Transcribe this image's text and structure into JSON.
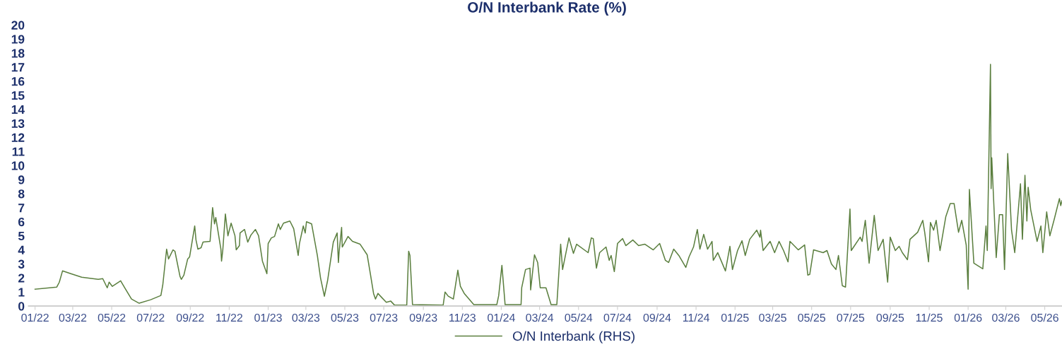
{
  "chart_data": {
    "type": "line",
    "title": "O/N Interbank Rate (%)",
    "xlim": [
      "2021-12-22",
      "2026-05-28"
    ],
    "xticks": [
      {
        "value": "2022-01-01",
        "label": "01/22"
      },
      {
        "value": "2022-03-01",
        "label": "03/22"
      },
      {
        "value": "2022-05-01",
        "label": "05/22"
      },
      {
        "value": "2022-07-01",
        "label": "07/22"
      },
      {
        "value": "2022-09-01",
        "label": "09/22"
      },
      {
        "value": "2022-11-01",
        "label": "11/22"
      },
      {
        "value": "2023-01-01",
        "label": "01/23"
      },
      {
        "value": "2023-03-01",
        "label": "03/23"
      },
      {
        "value": "2023-05-01",
        "label": "05/23"
      },
      {
        "value": "2023-07-01",
        "label": "07/23"
      },
      {
        "value": "2023-09-01",
        "label": "09/23"
      },
      {
        "value": "2023-11-01",
        "label": "11/23"
      },
      {
        "value": "2024-01-01",
        "label": "01/24"
      },
      {
        "value": "2024-03-01",
        "label": "03/24"
      },
      {
        "value": "2024-05-01",
        "label": "05/24"
      },
      {
        "value": "2024-07-01",
        "label": "07/24"
      },
      {
        "value": "2024-09-01",
        "label": "09/24"
      },
      {
        "value": "2024-11-01",
        "label": "11/24"
      },
      {
        "value": "2025-01-01",
        "label": "01/25"
      },
      {
        "value": "2025-03-01",
        "label": "03/25"
      },
      {
        "value": "2025-05-01",
        "label": "05/25"
      },
      {
        "value": "2025-07-01",
        "label": "07/25"
      },
      {
        "value": "2025-09-01",
        "label": "09/25"
      },
      {
        "value": "2025-11-01",
        "label": "11/25"
      },
      {
        "value": "2026-01-01",
        "label": "01/26"
      },
      {
        "value": "2026-03-01",
        "label": "03/26"
      },
      {
        "value": "2026-05-01",
        "label": "05/26"
      }
    ],
    "ylim": [
      0,
      20
    ],
    "yticks": [
      0,
      1,
      2,
      3,
      4,
      5,
      6,
      7,
      8,
      9,
      10,
      11,
      12,
      13,
      14,
      15,
      16,
      17,
      18,
      19,
      20
    ],
    "grid": false,
    "legend": "bottom",
    "marker": "none",
    "line_style": "solid",
    "series": [
      {
        "name": "O/N Interbank (RHS)",
        "color": "#5b7f3f",
        "x": [
          "2022-01-01",
          "2022-02-04",
          "2022-02-08",
          "2022-02-13",
          "2022-02-26",
          "2022-03-15",
          "2022-04-10",
          "2022-04-17",
          "2022-04-24",
          "2022-04-27",
          "2022-05-02",
          "2022-05-15",
          "2022-05-22",
          "2022-06-01",
          "2022-06-13",
          "2022-07-01",
          "2022-07-17",
          "2022-07-20",
          "2022-07-26",
          "2022-07-29",
          "2022-08-05",
          "2022-08-08",
          "2022-08-16",
          "2022-08-18",
          "2022-08-22",
          "2022-08-28",
          "2022-08-31",
          "2022-09-08",
          "2022-09-10",
          "2022-09-13",
          "2022-09-18",
          "2022-09-21",
          "2022-10-02",
          "2022-10-06",
          "2022-10-09",
          "2022-10-11",
          "2022-10-19",
          "2022-10-20",
          "2022-10-22",
          "2022-10-26",
          "2022-10-30",
          "2022-11-04",
          "2022-11-10",
          "2022-11-12",
          "2022-11-17",
          "2022-11-18",
          "2022-11-25",
          "2022-11-30",
          "2022-12-05",
          "2022-12-12",
          "2022-12-17",
          "2022-12-23",
          "2022-12-30",
          "2023-01-01",
          "2023-01-06",
          "2023-01-11",
          "2023-01-17",
          "2023-01-20",
          "2023-01-25",
          "2023-02-04",
          "2023-02-10",
          "2023-02-17",
          "2023-02-19",
          "2023-02-25",
          "2023-02-28",
          "2023-03-02",
          "2023-03-10",
          "2023-03-19",
          "2023-03-24",
          "2023-03-30",
          "2023-04-04",
          "2023-04-13",
          "2023-04-19",
          "2023-04-21",
          "2023-04-22",
          "2023-04-26",
          "2023-04-27",
          "2023-05-06",
          "2023-05-13",
          "2023-05-25",
          "2023-06-05",
          "2023-06-10",
          "2023-06-15",
          "2023-06-18",
          "2023-06-22",
          "2023-06-28",
          "2023-07-05",
          "2023-07-12",
          "2023-07-18",
          "2023-08-06",
          "2023-08-09",
          "2023-08-11",
          "2023-08-15",
          "2023-10-02",
          "2023-10-05",
          "2023-10-10",
          "2023-10-18",
          "2023-10-25",
          "2023-10-29",
          "2023-11-04",
          "2023-11-19",
          "2023-12-25",
          "2023-12-28",
          "2024-01-02",
          "2024-01-07",
          "2024-02-01",
          "2024-02-02",
          "2024-02-08",
          "2024-02-15",
          "2024-02-16",
          "2024-02-22",
          "2024-02-27",
          "2024-03-02",
          "2024-03-11",
          "2024-03-19",
          "2024-03-28",
          "2024-04-03",
          "2024-04-06",
          "2024-04-16",
          "2024-04-23",
          "2024-04-28",
          "2024-05-16",
          "2024-05-21",
          "2024-05-24",
          "2024-05-29",
          "2024-06-03",
          "2024-06-13",
          "2024-06-18",
          "2024-06-21",
          "2024-06-26",
          "2024-07-01",
          "2024-07-09",
          "2024-07-14",
          "2024-07-25",
          "2024-08-03",
          "2024-08-13",
          "2024-08-26",
          "2024-09-05",
          "2024-09-14",
          "2024-09-19",
          "2024-09-27",
          "2024-10-05",
          "2024-10-16",
          "2024-10-21",
          "2024-10-28",
          "2024-11-03",
          "2024-11-07",
          "2024-11-13",
          "2024-11-19",
          "2024-11-26",
          "2024-11-28",
          "2024-12-05",
          "2024-12-17",
          "2024-12-24",
          "2024-12-28",
          "2025-01-05",
          "2025-01-12",
          "2025-01-17",
          "2025-01-24",
          "2025-02-04",
          "2025-02-09",
          "2025-02-10",
          "2025-02-14",
          "2025-02-25",
          "2025-03-04",
          "2025-03-11",
          "2025-03-18",
          "2025-03-25",
          "2025-03-28",
          "2025-04-10",
          "2025-04-20",
          "2025-04-25",
          "2025-04-28",
          "2025-05-04",
          "2025-05-19",
          "2025-05-25",
          "2025-06-01",
          "2025-06-08",
          "2025-06-12",
          "2025-06-18",
          "2025-06-23",
          "2025-06-30",
          "2025-07-02",
          "2025-07-16",
          "2025-07-19",
          "2025-07-24",
          "2025-07-30",
          "2025-08-07",
          "2025-08-13",
          "2025-08-21",
          "2025-08-28",
          "2025-09-01",
          "2025-09-09",
          "2025-09-15",
          "2025-09-20",
          "2025-09-28",
          "2025-10-02",
          "2025-10-14",
          "2025-10-22",
          "2025-10-25",
          "2025-10-31",
          "2025-11-03",
          "2025-11-08",
          "2025-11-12",
          "2025-11-18",
          "2025-11-27",
          "2025-12-04",
          "2025-12-10",
          "2025-12-17",
          "2025-12-22",
          "2025-12-29",
          "2026-01-01",
          "2026-01-03",
          "2026-01-10",
          "2026-01-24",
          "2026-01-29",
          "2026-01-31",
          "2026-02-05",
          "2026-02-06",
          "2026-02-07",
          "2026-02-14",
          "2026-02-19",
          "2026-02-24",
          "2026-02-27",
          "2026-03-04",
          "2026-03-10",
          "2026-03-15",
          "2026-03-24",
          "2026-03-27",
          "2026-03-31",
          "2026-04-03",
          "2026-04-05",
          "2026-04-09",
          "2026-04-19",
          "2026-04-25",
          "2026-04-28",
          "2026-05-04",
          "2026-05-09",
          "2026-05-16",
          "2026-05-24",
          "2026-05-26",
          "2026-05-28"
        ],
        "values": [
          1.2,
          1.35,
          1.7,
          2.5,
          2.3,
          2.05,
          1.9,
          1.95,
          1.3,
          1.7,
          1.4,
          1.8,
          1.25,
          0.5,
          0.2,
          0.45,
          0.75,
          1.5,
          4.05,
          3.35,
          4.0,
          3.9,
          2.1,
          1.9,
          2.2,
          3.35,
          3.5,
          5.7,
          4.7,
          4.05,
          4.15,
          4.55,
          4.6,
          7.0,
          5.85,
          6.3,
          4.05,
          3.2,
          4.0,
          6.55,
          5.0,
          5.9,
          5.0,
          4.0,
          4.3,
          5.2,
          5.45,
          4.55,
          5.05,
          5.45,
          5.0,
          3.2,
          2.3,
          4.45,
          4.85,
          4.95,
          5.85,
          5.45,
          5.9,
          6.05,
          5.5,
          3.6,
          4.45,
          5.7,
          5.2,
          6.0,
          5.85,
          3.6,
          2.0,
          0.7,
          1.8,
          4.55,
          5.2,
          3.1,
          3.8,
          5.6,
          4.2,
          4.95,
          4.6,
          4.4,
          3.65,
          2.3,
          0.9,
          0.5,
          0.9,
          0.6,
          0.27,
          0.35,
          0.06,
          0.06,
          3.9,
          3.6,
          0.1,
          0.06,
          1.0,
          0.7,
          0.5,
          2.55,
          1.4,
          0.9,
          0.1,
          0.1,
          0.75,
          2.9,
          0.1,
          0.1,
          1.3,
          2.6,
          2.7,
          1.15,
          3.65,
          3.1,
          1.3,
          1.3,
          0.1,
          0.1,
          4.4,
          2.6,
          4.85,
          3.75,
          4.4,
          3.8,
          4.85,
          4.8,
          2.7,
          3.8,
          4.2,
          3.25,
          3.6,
          2.45,
          4.45,
          4.8,
          4.3,
          4.7,
          4.3,
          4.4,
          4.0,
          4.45,
          3.25,
          3.1,
          4.05,
          3.6,
          2.75,
          3.5,
          4.2,
          5.45,
          4.05,
          5.1,
          4.05,
          4.6,
          3.25,
          3.8,
          2.5,
          4.25,
          2.6,
          3.95,
          4.65,
          3.6,
          4.75,
          5.4,
          4.9,
          5.4,
          3.95,
          4.6,
          3.8,
          4.6,
          3.95,
          3.15,
          4.6,
          4.0,
          4.35,
          2.2,
          2.25,
          4.0,
          3.8,
          3.95,
          3.0,
          2.6,
          3.6,
          1.45,
          1.35,
          6.9,
          3.95,
          4.9,
          4.6,
          6.1,
          3.05,
          6.45,
          3.95,
          4.75,
          1.7,
          4.9,
          3.95,
          4.25,
          3.8,
          3.3,
          4.75,
          5.25,
          6.1,
          5.25,
          3.15,
          5.95,
          5.4,
          6.1,
          3.95,
          6.35,
          7.3,
          7.3,
          5.25,
          6.1,
          4.35,
          1.2,
          8.3,
          3.05,
          2.65,
          5.7,
          3.95,
          17.2,
          8.35,
          10.55,
          3.45,
          6.5,
          6.5,
          2.6,
          10.85,
          5.4,
          3.8,
          8.7,
          4.75,
          9.3,
          6.05,
          8.45,
          6.85,
          4.6,
          5.7,
          3.8,
          6.7,
          5.0,
          6.2,
          7.65,
          7.15,
          7.5
        ]
      }
    ]
  }
}
